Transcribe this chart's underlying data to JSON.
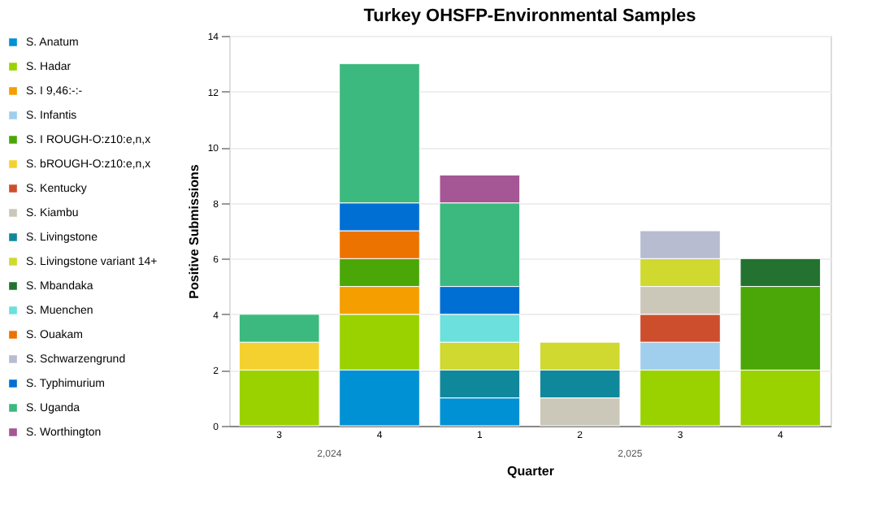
{
  "chart_data": {
    "type": "bar",
    "title": "Turkey OHSFP-Environmental Samples",
    "xlabel": "Quarter",
    "ylabel": "Positive Submissions",
    "categories": [
      "3",
      "4",
      "1",
      "2",
      "3",
      "4"
    ],
    "annotations": [
      "2,024",
      "2,025"
    ],
    "stacked": true,
    "ylim": [
      0,
      14
    ],
    "yticks": [
      0,
      2,
      4,
      6,
      8,
      10,
      12,
      14
    ],
    "grid": "y",
    "legend": "left",
    "series": [
      {
        "name": "S. Anatum",
        "color": "#0090d4",
        "values": [
          null,
          2,
          1,
          null,
          null,
          null
        ]
      },
      {
        "name": "S. Hadar",
        "color": "#9ad200",
        "values": [
          2,
          2,
          null,
          null,
          2,
          2
        ]
      },
      {
        "name": "S. I 9,46:-:-",
        "color": "#f49e00",
        "values": [
          null,
          1,
          null,
          null,
          null,
          null
        ]
      },
      {
        "name": "S. Infantis",
        "color": "#a0cfee",
        "values": [
          null,
          null,
          null,
          null,
          1,
          null
        ]
      },
      {
        "name": "S. I ROUGH-O:z10:e,n,x",
        "color": "#4aa707",
        "values": [
          null,
          1,
          null,
          null,
          null,
          3
        ]
      },
      {
        "name": "S. bROUGH-O:z10:e,n,x",
        "color": "#f5d130",
        "values": [
          1,
          null,
          null,
          null,
          null,
          null
        ]
      },
      {
        "name": "S. Kentucky",
        "color": "#cd4e2d",
        "values": [
          null,
          null,
          null,
          null,
          1,
          null
        ]
      },
      {
        "name": "S. Kiambu",
        "color": "#cbc8ba",
        "values": [
          null,
          null,
          null,
          1,
          1,
          null
        ]
      },
      {
        "name": "S. Livingstone",
        "color": "#10889c",
        "values": [
          null,
          null,
          1,
          1,
          null,
          null
        ]
      },
      {
        "name": "S. Livingstone variant 14+",
        "color": "#cfd92f",
        "values": [
          null,
          null,
          1,
          1,
          1,
          null
        ]
      },
      {
        "name": "S. Mbandaka",
        "color": "#23722f",
        "values": [
          null,
          null,
          null,
          null,
          null,
          1
        ]
      },
      {
        "name": "S. Muenchen",
        "color": "#6be0dc",
        "values": [
          null,
          null,
          1,
          null,
          null,
          null
        ]
      },
      {
        "name": "S. Ouakam",
        "color": "#ec7300",
        "values": [
          null,
          1,
          null,
          null,
          null,
          null
        ]
      },
      {
        "name": "S. Schwarzengrund",
        "color": "#b8bcd1",
        "values": [
          null,
          null,
          null,
          null,
          1,
          null
        ]
      },
      {
        "name": "S. Typhimurium",
        "color": "#006fd3",
        "values": [
          null,
          1,
          1,
          null,
          null,
          null
        ]
      },
      {
        "name": "S. Uganda",
        "color": "#3cb97f",
        "values": [
          1,
          5,
          3,
          null,
          null,
          null
        ]
      },
      {
        "name": "S. Worthington",
        "color": "#a55695",
        "values": [
          null,
          null,
          1,
          null,
          null,
          null
        ]
      }
    ]
  }
}
